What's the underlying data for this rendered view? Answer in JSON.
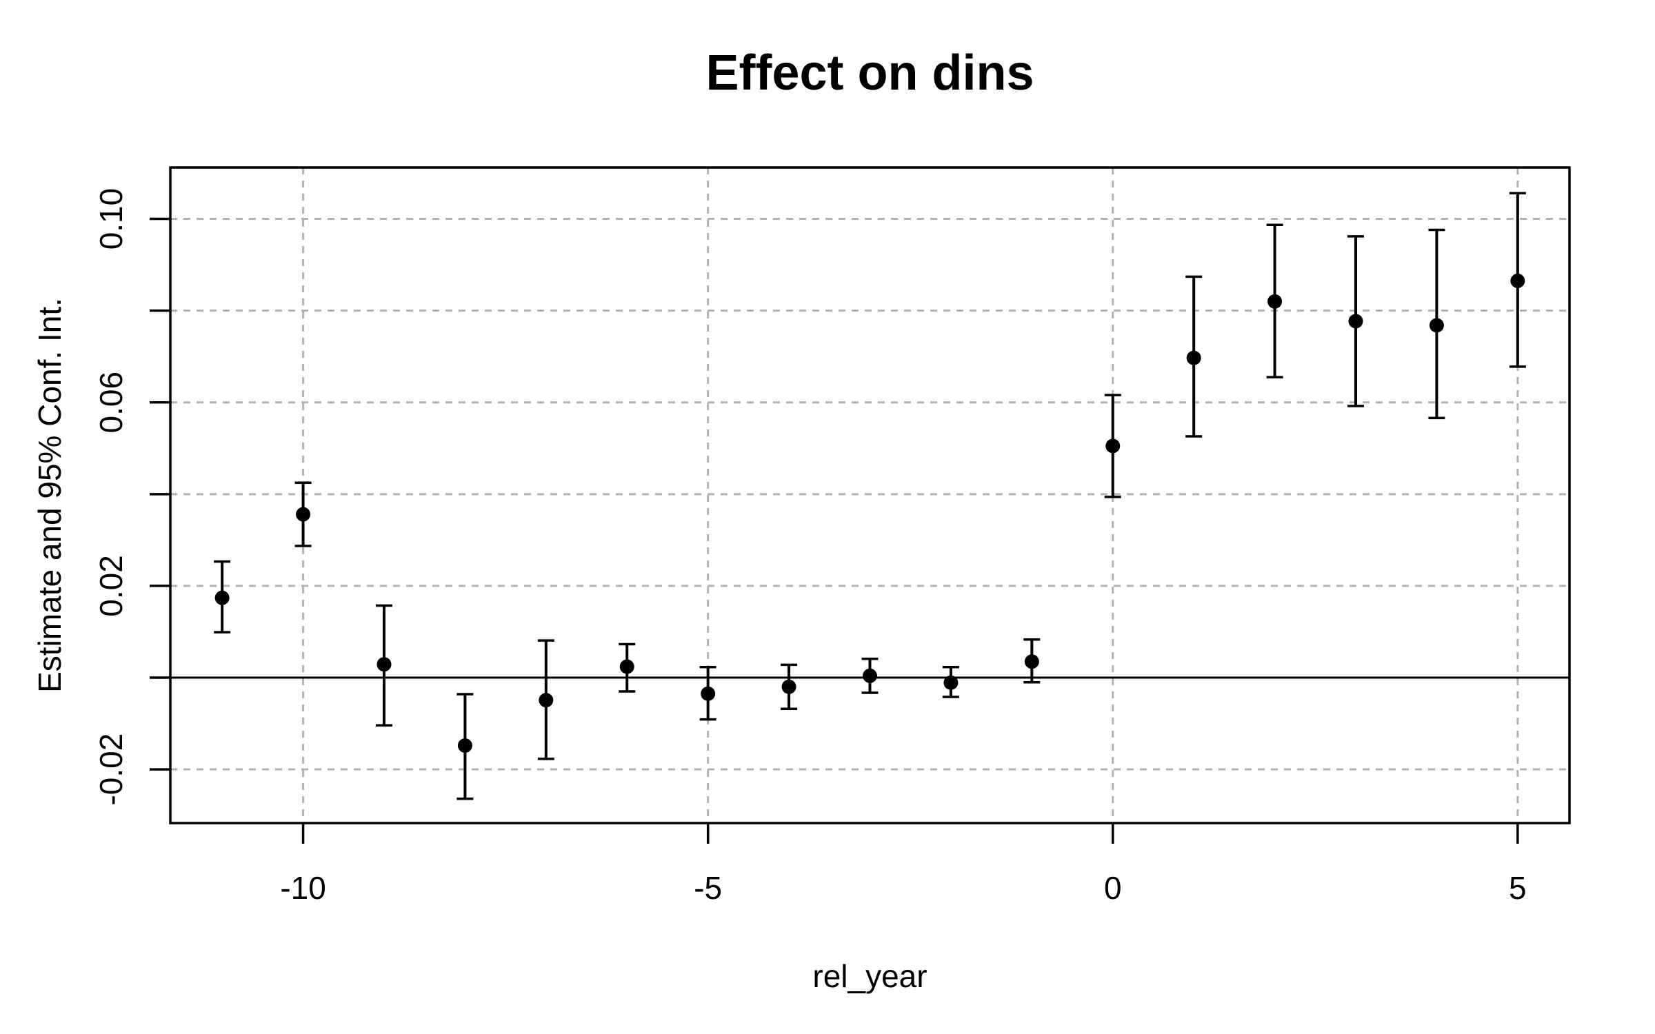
{
  "figure": {
    "background": "#ffffff"
  },
  "chart_data": {
    "type": "scatter",
    "subtype": "event-study-errorbar",
    "title": "Effect on dins",
    "xlabel": "rel_year",
    "ylabel": "Estimate and 95% Conf. Int.",
    "x": [
      -11,
      -10,
      -9,
      -8,
      -7,
      -6,
      -5,
      -4,
      -3,
      -2,
      -1,
      0,
      1,
      2,
      3,
      4,
      5
    ],
    "series": [
      {
        "name": "estimate",
        "values": [
          0.0174,
          0.0356,
          0.0029,
          -0.0148,
          -0.0049,
          0.0024,
          -0.0035,
          -0.002,
          0.0004,
          -0.0011,
          0.0035,
          0.0505,
          0.0697,
          0.082,
          0.0777,
          0.0768,
          0.0865
        ]
      },
      {
        "name": "ci_lower",
        "values": [
          0.0099,
          0.0287,
          -0.0104,
          -0.0264,
          -0.0177,
          -0.003,
          -0.0091,
          -0.0068,
          -0.0033,
          -0.0042,
          -0.001,
          0.0394,
          0.0526,
          0.0655,
          0.0592,
          0.0566,
          0.0678
        ]
      },
      {
        "name": "ci_upper",
        "values": [
          0.0253,
          0.0425,
          0.0157,
          -0.0036,
          0.0081,
          0.0073,
          0.0023,
          0.0028,
          0.0041,
          0.0023,
          0.0083,
          0.0616,
          0.0874,
          0.0987,
          0.0962,
          0.0976,
          0.1056
        ]
      }
    ],
    "xlim": [
      -11.64,
      5.64
    ],
    "ylim": [
      -0.0317,
      0.1112
    ],
    "x_ticks": [
      -10,
      -5,
      0,
      5
    ],
    "x_tick_labels": [
      "-10",
      "-5",
      "0",
      "5"
    ],
    "y_ticks": [
      -0.02,
      0,
      0.02,
      0.04,
      0.06,
      0.08,
      0.1
    ],
    "y_tick_labels": [
      {
        "value": -0.02,
        "label": "-0.02"
      },
      {
        "value": 0.02,
        "label": "0.02"
      },
      {
        "value": 0.06,
        "label": "0.06"
      },
      {
        "value": 0.1,
        "label": "0.10"
      }
    ],
    "grid": true,
    "grid_style": "dashed",
    "zero_line": 0,
    "legend": null,
    "colors": {
      "points": "#000000",
      "error_bars": "#000000",
      "grid": "#b3b3b3",
      "axis": "#000000",
      "zero_line": "#000000",
      "background": "#ffffff"
    }
  }
}
